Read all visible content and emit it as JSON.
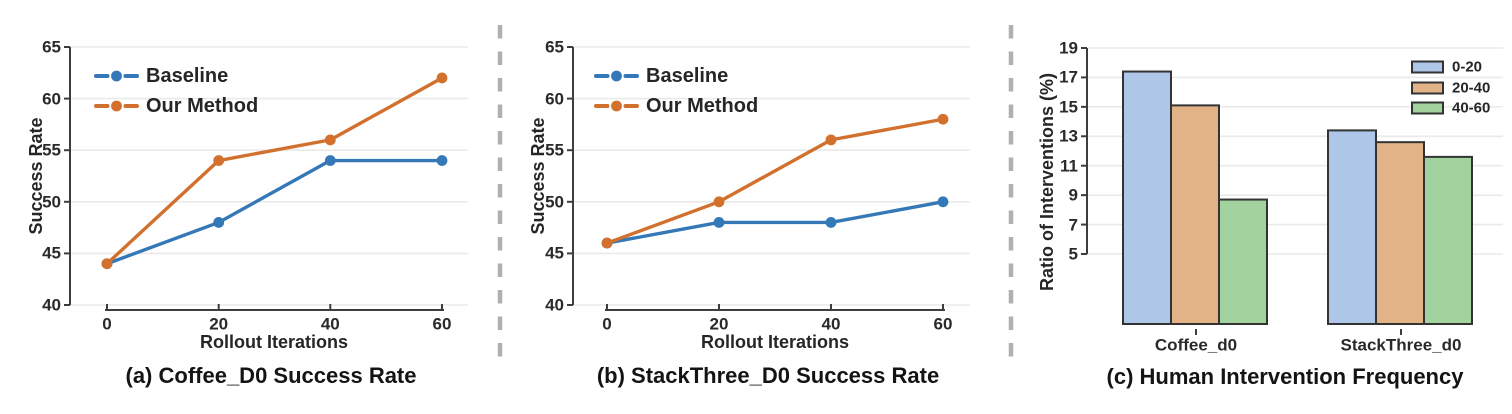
{
  "figure": {
    "background": "#ffffff",
    "separator_color": "#b0b0b0",
    "grid_color": "#eaeaea",
    "axis_color": "#3d3d3d",
    "text_color": "#2a2a2a",
    "bar_edge_color": "#333333"
  },
  "chart_data": [
    {
      "id": "a",
      "type": "line",
      "title": "(a) Coffee_D0 Success Rate",
      "xlabel": "Rollout Iterations",
      "ylabel": "Success Rate",
      "x": [
        0,
        20,
        40,
        60
      ],
      "xticks": [
        "0",
        "20",
        "40",
        "60"
      ],
      "yticks": [
        "40",
        "45",
        "50",
        "55",
        "60",
        "65"
      ],
      "ylim": [
        40,
        65
      ],
      "grid": true,
      "legend_position": "upper left",
      "series": [
        {
          "name": "Baseline",
          "color": "#3578b8",
          "values": [
            44,
            48,
            54,
            54
          ]
        },
        {
          "name": "Our Method",
          "color": "#d2702d",
          "values": [
            44,
            54,
            56,
            62
          ]
        }
      ]
    },
    {
      "id": "b",
      "type": "line",
      "title": "(b) StackThree_D0 Success Rate",
      "xlabel": "Rollout Iterations",
      "ylabel": "Success Rate",
      "x": [
        0,
        20,
        40,
        60
      ],
      "xticks": [
        "0",
        "20",
        "40",
        "60"
      ],
      "yticks": [
        "40",
        "45",
        "50",
        "55",
        "60",
        "65"
      ],
      "ylim": [
        40,
        65
      ],
      "grid": true,
      "legend_position": "upper left",
      "series": [
        {
          "name": "Baseline",
          "color": "#3578b8",
          "values": [
            46,
            48,
            48,
            50
          ]
        },
        {
          "name": "Our Method",
          "color": "#d2702d",
          "values": [
            46,
            50,
            56,
            58
          ]
        }
      ]
    },
    {
      "id": "c",
      "type": "bar",
      "title": "(c) Human Intervention Frequency",
      "xlabel": "",
      "ylabel": "Ratio of Interventions (%)",
      "categories": [
        "Coffee_d0",
        "StackThree_d0"
      ],
      "yticks": [
        "5",
        "7",
        "9",
        "11",
        "13",
        "15",
        "17",
        "19"
      ],
      "ytick_values": [
        5,
        7,
        9,
        11,
        13,
        15,
        17,
        19
      ],
      "ylim": [
        0,
        19
      ],
      "grid": true,
      "legend_position": "upper right",
      "series": [
        {
          "name": "0-20",
          "color": "#aec6e8",
          "values": [
            17.4,
            13.4
          ]
        },
        {
          "name": "20-40",
          "color": "#e3b388",
          "values": [
            15.1,
            12.6
          ]
        },
        {
          "name": "40-60",
          "color": "#a2d29e",
          "values": [
            8.7,
            11.6
          ]
        }
      ]
    }
  ]
}
